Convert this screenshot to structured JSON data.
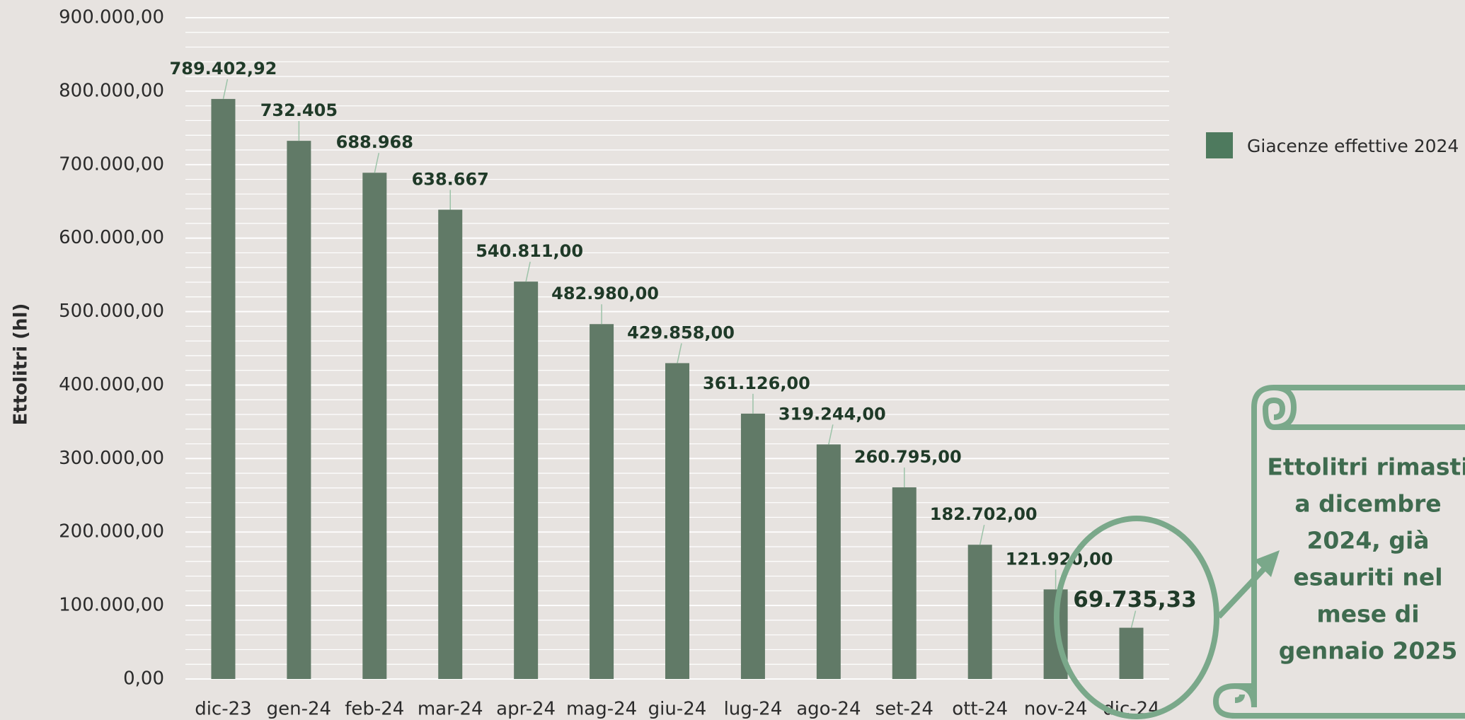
{
  "chart_data": {
    "type": "bar",
    "y_axis_label": "Ettolitri (hl)",
    "categories": [
      "dic-23",
      "gen-24",
      "feb-24",
      "mar-24",
      "apr-24",
      "mag-24",
      "giu-24",
      "lug-24",
      "ago-24",
      "set-24",
      "ott-24",
      "nov-24",
      "dic-24"
    ],
    "series": [
      {
        "name": "Giacenze effettive 2024",
        "color": "#617a67",
        "values": [
          789402.92,
          732405,
          688968,
          638667,
          540811,
          482980,
          429858,
          361126,
          319244,
          260795,
          182702,
          121920,
          69735.33
        ],
        "value_labels": [
          "789.402,92",
          "732.405",
          "688.968",
          "638.667",
          "540.811,00",
          "482.980,00",
          "429.858,00",
          "361.126,00",
          "319.244,00",
          "260.795,00",
          "182.702,00",
          "121.920,00",
          "69.735,33"
        ]
      }
    ],
    "ylim": [
      0,
      900000
    ],
    "yticks": [
      {
        "value": 0,
        "label": "0,00"
      },
      {
        "value": 100000,
        "label": "100.000,00"
      },
      {
        "value": 200000,
        "label": "200.000,00"
      },
      {
        "value": 300000,
        "label": "300.000,00"
      },
      {
        "value": 400000,
        "label": "400.000,00"
      },
      {
        "value": 500000,
        "label": "500.000,00"
      },
      {
        "value": 600000,
        "label": "600.000,00"
      },
      {
        "value": 700000,
        "label": "700.000,00"
      },
      {
        "value": 800000,
        "label": "800.000,00"
      },
      {
        "value": 900000,
        "label": "900.000,00"
      }
    ],
    "minor_yticks": [
      20000,
      40000,
      60000,
      80000,
      120000,
      140000,
      160000,
      180000,
      220000,
      240000,
      260000,
      280000,
      320000,
      340000,
      360000,
      380000,
      420000,
      440000,
      460000,
      480000,
      520000,
      540000,
      560000,
      580000,
      620000,
      640000,
      660000,
      680000,
      720000,
      740000,
      760000,
      780000,
      820000,
      840000,
      860000,
      880000
    ],
    "grid": true,
    "legend": "right",
    "annotation_lines": [
      "Ettolitri rimasti",
      "a dicembre",
      "2024, già",
      "esauriti nel",
      "mese di",
      "gennaio 2025"
    ]
  }
}
